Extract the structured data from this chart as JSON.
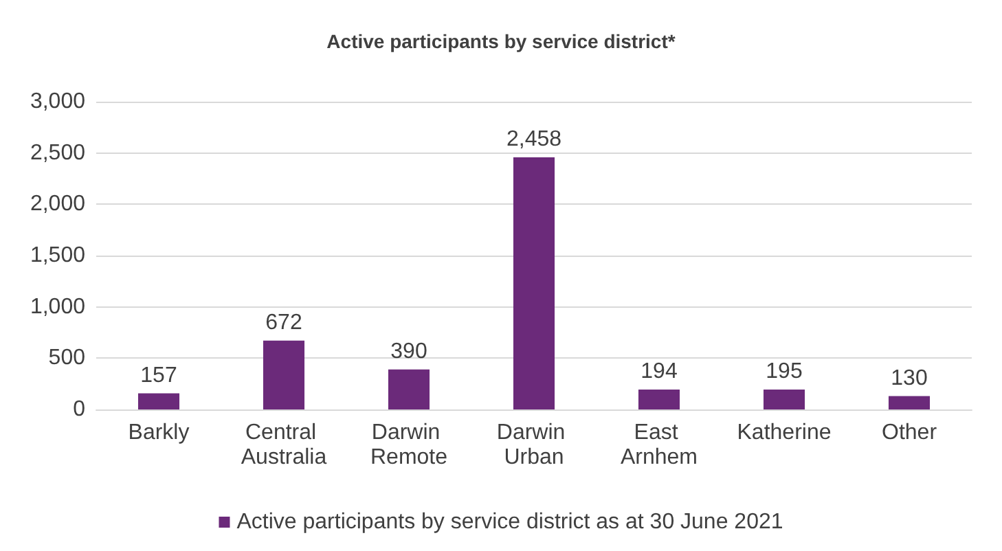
{
  "chart_data": {
    "type": "bar",
    "title": "Active participants by service district*",
    "categories": [
      "Barkly",
      "Central Australia",
      "Darwin Remote",
      "Darwin Urban",
      "East Arnhem",
      "Katherine",
      "Other"
    ],
    "series": [
      {
        "name": "Active participants by service district as at 30 June 2021",
        "color": "#6b2a7a",
        "values": [
          157,
          672,
          390,
          2458,
          194,
          195,
          130
        ],
        "value_labels": [
          "157",
          "672",
          "390",
          "2,458",
          "194",
          "195",
          "130"
        ]
      }
    ],
    "ylim": [
      0,
      3000
    ],
    "yticks": [
      0,
      500,
      {
        "value": 1000,
        "label": "1,000"
      },
      {
        "value": 1500,
        "label": "1,500"
      },
      {
        "value": 2000,
        "label": "2,000"
      },
      {
        "value": 2500,
        "label": "2,500"
      },
      {
        "value": 3000,
        "label": "3,000"
      }
    ],
    "grid": "y",
    "legend": "bottom"
  }
}
